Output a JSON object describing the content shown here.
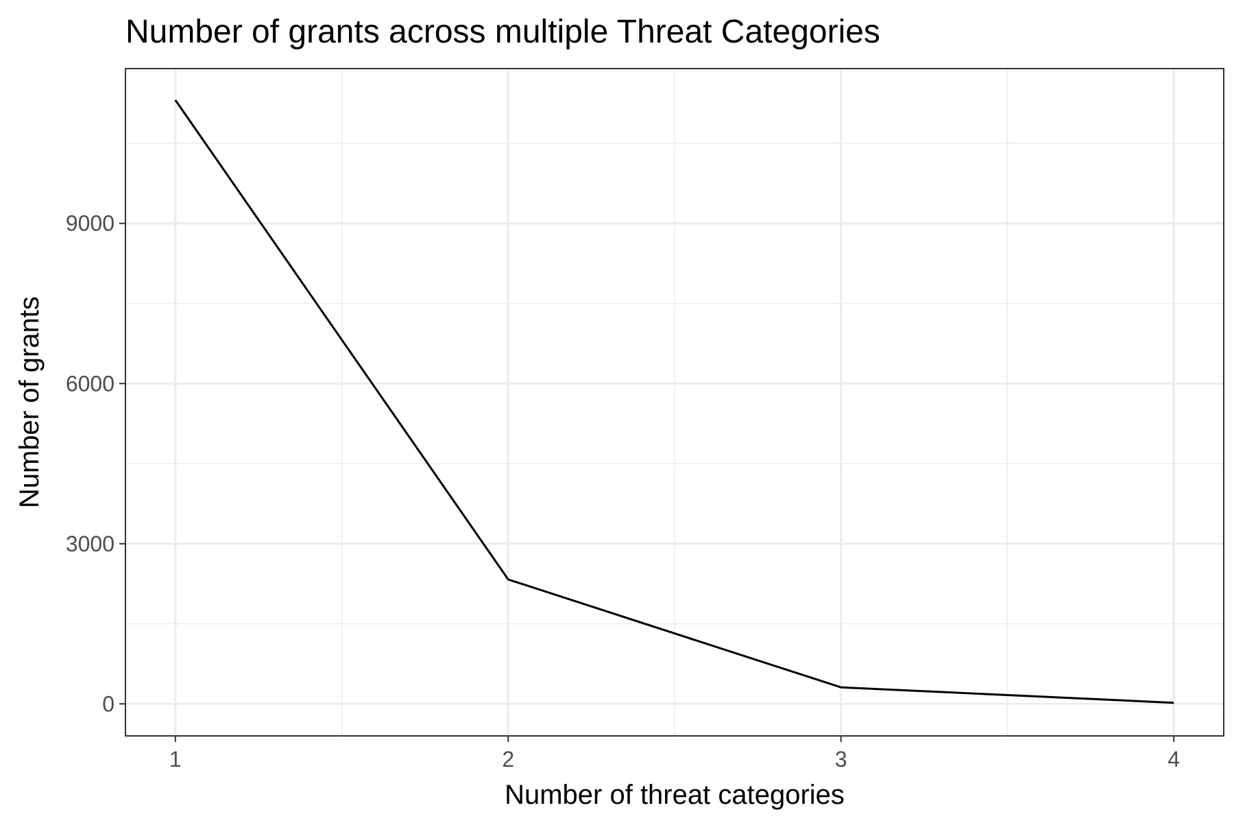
{
  "chart_data": {
    "type": "line",
    "title": "Number of grants across multiple Threat Categories",
    "xlabel": "Number of threat categories",
    "ylabel": "Number of grants",
    "x": [
      1,
      2,
      3,
      4
    ],
    "series": [
      {
        "values": [
          11310,
          2330,
          310,
          20
        ]
      }
    ],
    "xlim": [
      0.85,
      4.15
    ],
    "ylim": [
      -600,
      11900
    ],
    "xticks": [
      1,
      2,
      3,
      4
    ],
    "yticks": [
      0,
      3000,
      6000,
      9000
    ],
    "grid": true,
    "legend": "none",
    "line_color": "#000000"
  }
}
